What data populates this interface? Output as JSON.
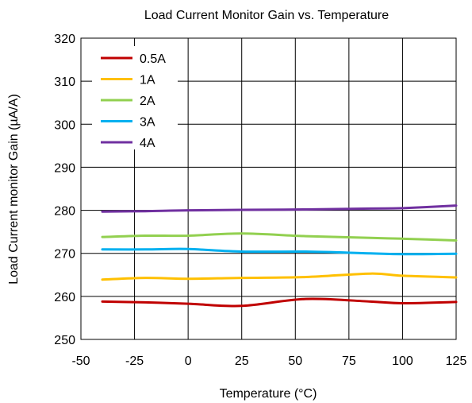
{
  "chart_data": {
    "type": "line",
    "title": "Load Current Monitor Gain vs. Temperature",
    "xlabel": "Temperature (°C)",
    "ylabel": "Load Current monitor Gain (µA/A)",
    "xlim": [
      -50,
      125
    ],
    "ylim": [
      250,
      320
    ],
    "xticks": [
      "-50",
      "-25",
      "0",
      "25",
      "50",
      "75",
      "100",
      "125"
    ],
    "yticks": [
      "250",
      "260",
      "270",
      "280",
      "290",
      "300",
      "310",
      "320"
    ],
    "grid": true,
    "legend_position": "top-left",
    "x": [
      -40,
      -20,
      0,
      25,
      55,
      85,
      100,
      125
    ],
    "series": [
      {
        "name": "0.5A",
        "color": "#C00000",
        "values": [
          258.8,
          258.6,
          258.3,
          257.8,
          259.4,
          258.8,
          258.4,
          258.7
        ]
      },
      {
        "name": "1A",
        "color": "#FFC000",
        "values": [
          263.9,
          264.3,
          264.1,
          264.3,
          264.5,
          265.3,
          264.8,
          264.4
        ]
      },
      {
        "name": "2A",
        "color": "#92D050",
        "values": [
          273.8,
          274.1,
          274.1,
          274.6,
          274.0,
          273.6,
          273.4,
          273.0
        ]
      },
      {
        "name": "3A",
        "color": "#00B0F0",
        "values": [
          270.9,
          270.9,
          271.0,
          270.4,
          270.4,
          270.0,
          269.8,
          269.9
        ]
      },
      {
        "name": "4A",
        "color": "#7030A0",
        "values": [
          279.7,
          279.8,
          280.0,
          280.1,
          280.2,
          280.4,
          280.5,
          281.1
        ]
      }
    ]
  }
}
